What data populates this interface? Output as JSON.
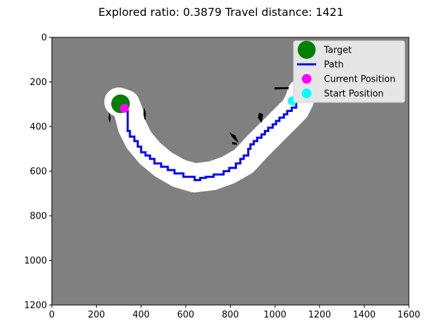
{
  "chart_data": {
    "type": "scatter",
    "title": "Explored ratio: 0.3879  Travel distance: 1421",
    "xlabel": "",
    "ylabel": "",
    "xlim": [
      0,
      1600
    ],
    "ylim": [
      1200,
      0
    ],
    "y_inverted": true,
    "grid": false,
    "legend_position": "upper-right",
    "x_ticks": [
      "0",
      "200",
      "400",
      "600",
      "800",
      "1000",
      "1200",
      "1400",
      "1600"
    ],
    "y_ticks": [
      "0",
      "200",
      "400",
      "600",
      "800",
      "1000",
      "1200"
    ],
    "colors": {
      "unexplored": "#808080",
      "explored": "#ffffff",
      "obstacle": "#000000",
      "target": "#008000",
      "path": "#0000ff",
      "current": "#ff00ff",
      "start": "#00ffff"
    },
    "target": {
      "name": "Target",
      "x": 308,
      "y": 298
    },
    "current_position": {
      "name": "Current Position",
      "x": 325,
      "y": 318
    },
    "start_position": {
      "name": "Start Position",
      "x": 1078,
      "y": 285
    },
    "path": {
      "name": "Path",
      "points": [
        [
          1078,
          285
        ],
        [
          1095,
          285
        ],
        [
          1095,
          315
        ],
        [
          1075,
          315
        ],
        [
          1075,
          330
        ],
        [
          1055,
          330
        ],
        [
          1055,
          345
        ],
        [
          1040,
          345
        ],
        [
          1040,
          360
        ],
        [
          1020,
          360
        ],
        [
          1020,
          375
        ],
        [
          1005,
          375
        ],
        [
          1005,
          390
        ],
        [
          990,
          390
        ],
        [
          990,
          405
        ],
        [
          970,
          405
        ],
        [
          970,
          420
        ],
        [
          955,
          420
        ],
        [
          955,
          435
        ],
        [
          940,
          435
        ],
        [
          940,
          450
        ],
        [
          920,
          450
        ],
        [
          920,
          465
        ],
        [
          905,
          465
        ],
        [
          905,
          480
        ],
        [
          890,
          480
        ],
        [
          890,
          500
        ],
        [
          880,
          500
        ],
        [
          880,
          530
        ],
        [
          860,
          530
        ],
        [
          860,
          545
        ],
        [
          845,
          545
        ],
        [
          845,
          565
        ],
        [
          825,
          565
        ],
        [
          825,
          585
        ],
        [
          795,
          585
        ],
        [
          795,
          600
        ],
        [
          770,
          600
        ],
        [
          770,
          615
        ],
        [
          725,
          615
        ],
        [
          725,
          625
        ],
        [
          690,
          625
        ],
        [
          690,
          630
        ],
        [
          665,
          630
        ],
        [
          665,
          640
        ],
        [
          640,
          640
        ],
        [
          640,
          625
        ],
        [
          590,
          625
        ],
        [
          590,
          610
        ],
        [
          550,
          610
        ],
        [
          550,
          595
        ],
        [
          520,
          595
        ],
        [
          520,
          580
        ],
        [
          490,
          580
        ],
        [
          490,
          565
        ],
        [
          460,
          565
        ],
        [
          460,
          545
        ],
        [
          440,
          545
        ],
        [
          440,
          530
        ],
        [
          420,
          530
        ],
        [
          420,
          515
        ],
        [
          400,
          515
        ],
        [
          400,
          490
        ],
        [
          385,
          490
        ],
        [
          385,
          465
        ],
        [
          370,
          465
        ],
        [
          370,
          445
        ],
        [
          350,
          445
        ],
        [
          350,
          420
        ],
        [
          340,
          420
        ],
        [
          340,
          330
        ],
        [
          325,
          330
        ],
        [
          325,
          318
        ]
      ]
    },
    "explored_corridor": [
      [
        300,
        290
      ],
      [
        330,
        300
      ],
      [
        345,
        340
      ],
      [
        360,
        400
      ],
      [
        390,
        460
      ],
      [
        440,
        520
      ],
      [
        500,
        570
      ],
      [
        570,
        610
      ],
      [
        640,
        630
      ],
      [
        720,
        620
      ],
      [
        790,
        595
      ],
      [
        860,
        555
      ],
      [
        920,
        490
      ],
      [
        990,
        420
      ],
      [
        1050,
        360
      ],
      [
        1090,
        320
      ],
      [
        1110,
        280
      ],
      [
        1120,
        250
      ]
    ],
    "obstacles": [
      {
        "points": [
          [
            258,
            340
          ],
          [
            262,
            360
          ],
          [
            260,
            380
          ],
          [
            256,
            365
          ]
        ]
      },
      {
        "points": [
          [
            415,
            320
          ],
          [
            420,
            340
          ],
          [
            418,
            370
          ],
          [
            412,
            345
          ]
        ]
      },
      {
        "points": [
          [
            800,
            430
          ],
          [
            820,
            440
          ],
          [
            835,
            470
          ],
          [
            812,
            450
          ]
        ]
      },
      {
        "points": [
          [
            810,
            470
          ],
          [
            828,
            475
          ],
          [
            828,
            480
          ],
          [
            810,
            478
          ]
        ]
      },
      {
        "points": [
          [
            930,
            340
          ],
          [
            945,
            345
          ],
          [
            940,
            380
          ],
          [
            925,
            360
          ]
        ]
      },
      {
        "points": [
          [
            1000,
            225
          ],
          [
            1060,
            225
          ],
          [
            1060,
            230
          ],
          [
            1000,
            232
          ]
        ]
      }
    ],
    "legend": [
      {
        "label": "Target",
        "kind": "big-dot",
        "color": "#008000"
      },
      {
        "label": "Path",
        "kind": "line",
        "color": "#0000ff"
      },
      {
        "label": "Current Position",
        "kind": "dot",
        "color": "#ff00ff"
      },
      {
        "label": "Start Position",
        "kind": "dot",
        "color": "#00ffff"
      }
    ]
  }
}
